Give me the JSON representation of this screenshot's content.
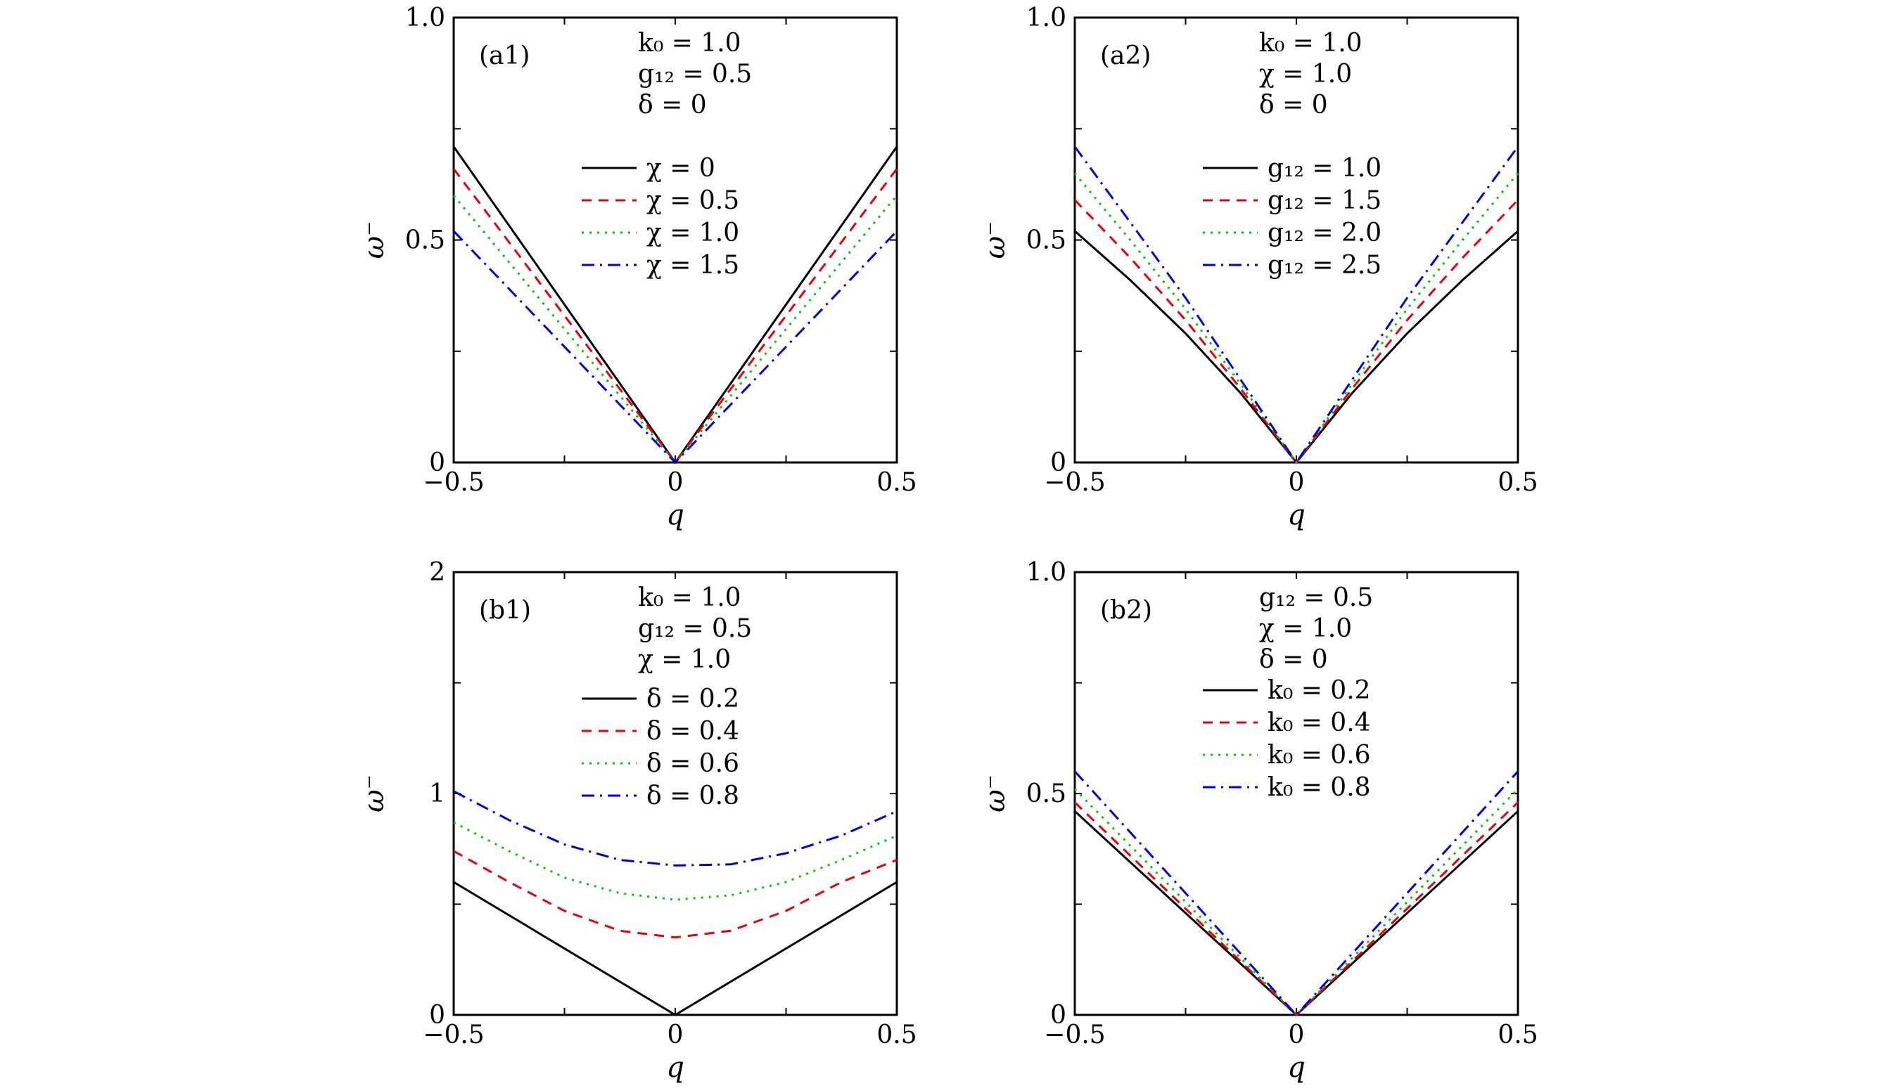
{
  "chart_data": [
    {
      "type": "line",
      "panel_label": "(a1)",
      "title": "",
      "xlabel": "q",
      "ylabel": "ω⁻",
      "xlim": [
        -0.5,
        0.5
      ],
      "ylim": [
        0,
        1.0
      ],
      "xticks": [
        {
          "v": -0.5,
          "label": "−0.5"
        },
        {
          "v": 0,
          "label": "0"
        },
        {
          "v": 0.5,
          "label": "0.5"
        }
      ],
      "yticks": [
        {
          "v": 0,
          "label": "0"
        },
        {
          "v": 0.5,
          "label": "0.5"
        },
        {
          "v": 1.0,
          "label": "1.0"
        }
      ],
      "annotations": [
        "k₀ = 1.0",
        "g₁₂ = 0.5",
        "δ = 0"
      ],
      "legend_position": "center-right",
      "series": [
        {
          "name": "χ = 0",
          "color": "#000000",
          "style": "solid",
          "x": [
            -0.5,
            0,
            0.5
          ],
          "y": [
            0.71,
            0,
            0.71
          ]
        },
        {
          "name": "χ = 0.5",
          "color": "#e8000b",
          "style": "dashed",
          "x": [
            -0.5,
            0,
            0.5
          ],
          "y": [
            0.66,
            0,
            0.66
          ]
        },
        {
          "name": "χ = 1.0",
          "color": "#00c800",
          "style": "dotted",
          "x": [
            -0.5,
            0,
            0.5
          ],
          "y": [
            0.6,
            0,
            0.6
          ]
        },
        {
          "name": "χ = 1.5",
          "color": "#0000dd",
          "style": "dashdot",
          "x": [
            -0.5,
            0,
            0.5
          ],
          "y": [
            0.52,
            0,
            0.52
          ]
        }
      ]
    },
    {
      "type": "line",
      "panel_label": "(a2)",
      "title": "",
      "xlabel": "q",
      "ylabel": "ω⁻",
      "xlim": [
        -0.5,
        0.5
      ],
      "ylim": [
        0,
        1.0
      ],
      "xticks": [
        {
          "v": -0.5,
          "label": "−0.5"
        },
        {
          "v": 0,
          "label": "0"
        },
        {
          "v": 0.5,
          "label": "0.5"
        }
      ],
      "yticks": [
        {
          "v": 0,
          "label": "0"
        },
        {
          "v": 0.5,
          "label": "0.5"
        },
        {
          "v": 1.0,
          "label": "1.0"
        }
      ],
      "annotations": [
        "k₀ = 1.0",
        "χ = 1.0",
        "δ = 0"
      ],
      "legend_position": "center-right",
      "series": [
        {
          "name": "g₁₂ = 1.0",
          "color": "#000000",
          "style": "solid",
          "x": [
            -0.5,
            -0.375,
            -0.25,
            -0.125,
            0,
            0.125,
            0.25,
            0.375,
            0.5
          ],
          "y": [
            0.52,
            0.41,
            0.29,
            0.155,
            0,
            0.155,
            0.29,
            0.41,
            0.52
          ]
        },
        {
          "name": "g₁₂ = 1.5",
          "color": "#e8000b",
          "style": "dashed",
          "x": [
            -0.5,
            -0.375,
            -0.25,
            -0.125,
            0,
            0.125,
            0.25,
            0.375,
            0.5
          ],
          "y": [
            0.59,
            0.46,
            0.32,
            0.165,
            0,
            0.165,
            0.32,
            0.46,
            0.59
          ]
        },
        {
          "name": "g₁₂ = 2.0",
          "color": "#00c800",
          "style": "dotted",
          "x": [
            -0.5,
            -0.375,
            -0.25,
            -0.125,
            0,
            0.125,
            0.25,
            0.375,
            0.5
          ],
          "y": [
            0.65,
            0.5,
            0.345,
            0.175,
            0,
            0.175,
            0.345,
            0.5,
            0.65
          ]
        },
        {
          "name": "g₁₂ = 2.5",
          "color": "#0000dd",
          "style": "dashdot",
          "x": [
            -0.5,
            -0.375,
            -0.25,
            -0.125,
            0,
            0.125,
            0.25,
            0.375,
            0.5
          ],
          "y": [
            0.71,
            0.54,
            0.37,
            0.185,
            0,
            0.185,
            0.37,
            0.54,
            0.71
          ]
        }
      ]
    },
    {
      "type": "line",
      "panel_label": "(b1)",
      "title": "",
      "xlabel": "q",
      "ylabel": "ω⁻",
      "xlim": [
        -0.5,
        0.5
      ],
      "ylim": [
        0,
        2
      ],
      "xticks": [
        {
          "v": -0.5,
          "label": "−0.5"
        },
        {
          "v": 0,
          "label": "0"
        },
        {
          "v": 0.5,
          "label": "0.5"
        }
      ],
      "yticks": [
        {
          "v": 0,
          "label": "0"
        },
        {
          "v": 1,
          "label": "1"
        },
        {
          "v": 2,
          "label": "2"
        }
      ],
      "annotations": [
        "k₀ = 1.0",
        "g₁₂ = 0.5",
        "χ = 1.0"
      ],
      "legend_position": "center-right",
      "series": [
        {
          "name": "δ = 0.2",
          "color": "#000000",
          "style": "solid",
          "x": [
            -0.5,
            0,
            0.5
          ],
          "y": [
            0.6,
            0,
            0.6
          ]
        },
        {
          "name": "δ = 0.4",
          "color": "#e8000b",
          "style": "dashed",
          "x": [
            -0.5,
            -0.375,
            -0.25,
            -0.125,
            0,
            0.125,
            0.25,
            0.375,
            0.5
          ],
          "y": [
            0.74,
            0.6,
            0.47,
            0.38,
            0.35,
            0.38,
            0.47,
            0.6,
            0.7
          ]
        },
        {
          "name": "δ = 0.6",
          "color": "#00c800",
          "style": "dotted",
          "x": [
            -0.5,
            -0.375,
            -0.25,
            -0.125,
            0,
            0.125,
            0.25,
            0.375,
            0.5
          ],
          "y": [
            0.87,
            0.74,
            0.62,
            0.55,
            0.52,
            0.54,
            0.6,
            0.7,
            0.81
          ]
        },
        {
          "name": "δ = 0.8",
          "color": "#0000dd",
          "style": "dashdot",
          "x": [
            -0.5,
            -0.375,
            -0.25,
            -0.125,
            0,
            0.125,
            0.25,
            0.375,
            0.5
          ],
          "y": [
            1.01,
            0.88,
            0.77,
            0.7,
            0.675,
            0.68,
            0.73,
            0.81,
            0.92
          ]
        }
      ]
    },
    {
      "type": "line",
      "panel_label": "(b2)",
      "title": "",
      "xlabel": "q",
      "ylabel": "ω⁻",
      "xlim": [
        -0.5,
        0.5
      ],
      "ylim": [
        0,
        1.0
      ],
      "xticks": [
        {
          "v": -0.5,
          "label": "−0.5"
        },
        {
          "v": 0,
          "label": "0"
        },
        {
          "v": 0.5,
          "label": "0.5"
        }
      ],
      "yticks": [
        {
          "v": 0,
          "label": "0"
        },
        {
          "v": 0.5,
          "label": "0.5"
        },
        {
          "v": 1.0,
          "label": "1.0"
        }
      ],
      "annotations": [
        "g₁₂ = 0.5",
        "χ = 1.0",
        "δ = 0"
      ],
      "legend_position": "center-right",
      "series": [
        {
          "name": "k₀ = 0.2",
          "color": "#000000",
          "style": "solid",
          "x": [
            -0.5,
            0,
            0.5
          ],
          "y": [
            0.46,
            0,
            0.46
          ]
        },
        {
          "name": "k₀ = 0.4",
          "color": "#e8000b",
          "style": "dashed",
          "x": [
            -0.5,
            0,
            0.5
          ],
          "y": [
            0.48,
            0,
            0.48
          ]
        },
        {
          "name": "k₀ = 0.6",
          "color": "#00c800",
          "style": "dotted",
          "x": [
            -0.5,
            0,
            0.5
          ],
          "y": [
            0.51,
            0,
            0.51
          ]
        },
        {
          "name": "k₀ = 0.8",
          "color": "#0000dd",
          "style": "dashdot",
          "x": [
            -0.5,
            0,
            0.5
          ],
          "y": [
            0.55,
            0,
            0.55
          ]
        }
      ]
    }
  ]
}
